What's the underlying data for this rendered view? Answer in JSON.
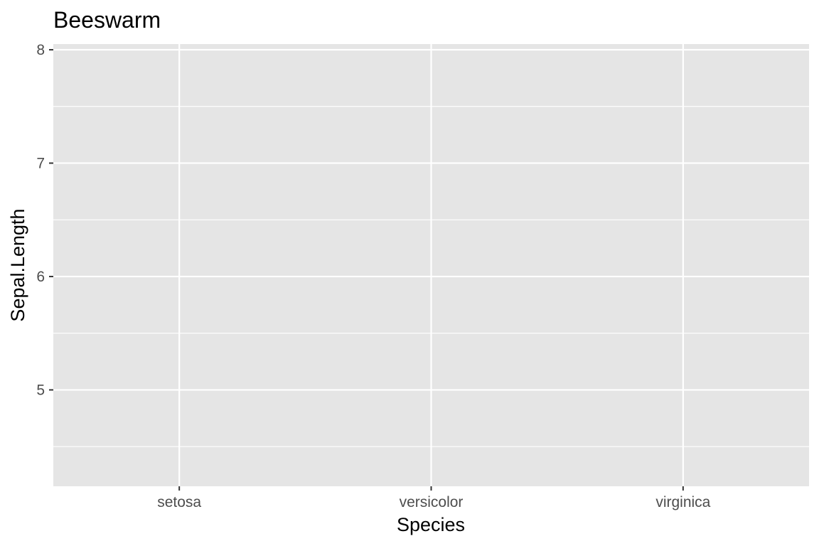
{
  "chart_data": {
    "type": "scatter",
    "title": "Beeswarm",
    "xlabel": "Species",
    "ylabel": "Sepal.Length",
    "categories": [
      "setosa",
      "versicolor",
      "virginica"
    ],
    "ylim": [
      4.15,
      8.05
    ],
    "y_ticks": [
      5,
      6,
      7,
      8
    ],
    "y_minor_ticks": [
      4.5,
      5.5,
      6.5,
      7.5
    ],
    "grid": true,
    "legend": "none",
    "points": [],
    "colors": {
      "panel_background": "#e5e5e5",
      "grid_line": "#ffffff",
      "tick_text": "#4d4d4d",
      "axis_text": "#000000"
    }
  }
}
